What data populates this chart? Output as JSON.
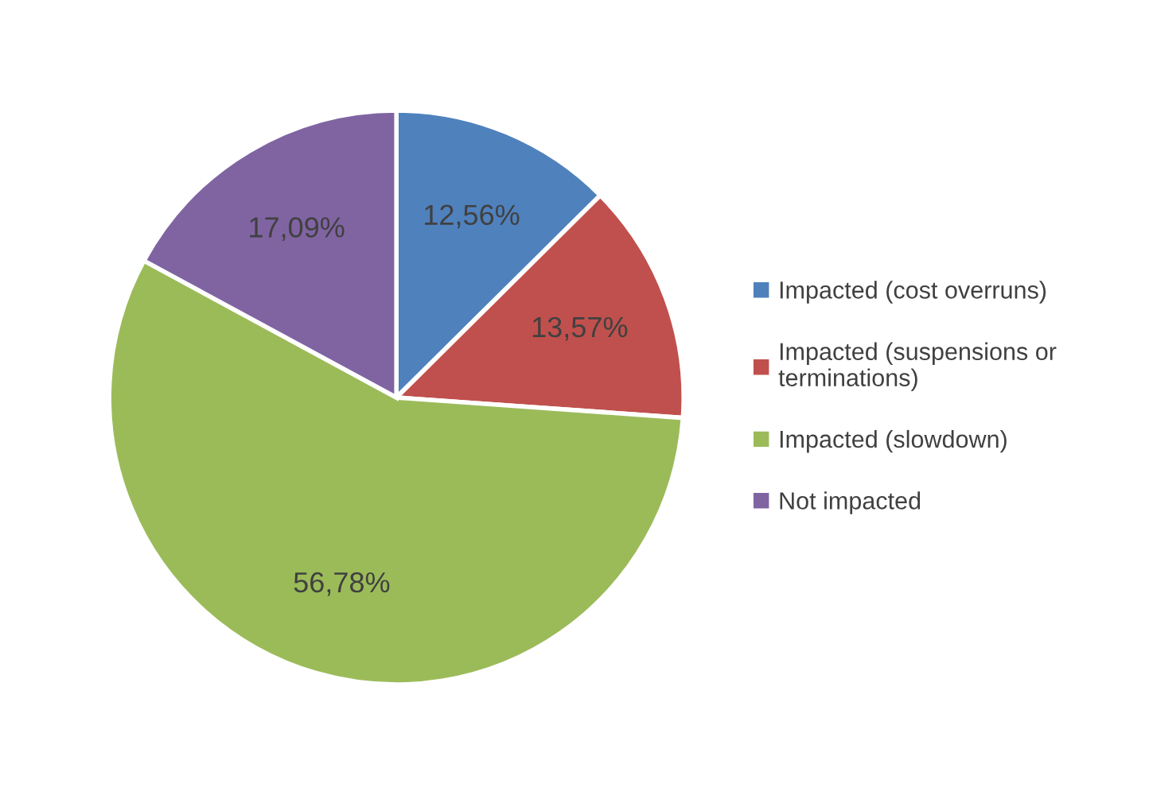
{
  "chart_data": {
    "type": "pie",
    "categories": [
      "Impacted (cost overruns)",
      "Impacted (suspensions or terminations)",
      "Impacted (slowdown)",
      "Not impacted"
    ],
    "values": [
      12.56,
      13.57,
      56.78,
      17.09
    ],
    "value_labels": [
      "12,56%",
      "13,57%",
      "56,78%",
      "17,09%"
    ],
    "colors": [
      "#4f81bd",
      "#c0504d",
      "#9bbb59",
      "#8064a2"
    ],
    "legend": "right"
  }
}
